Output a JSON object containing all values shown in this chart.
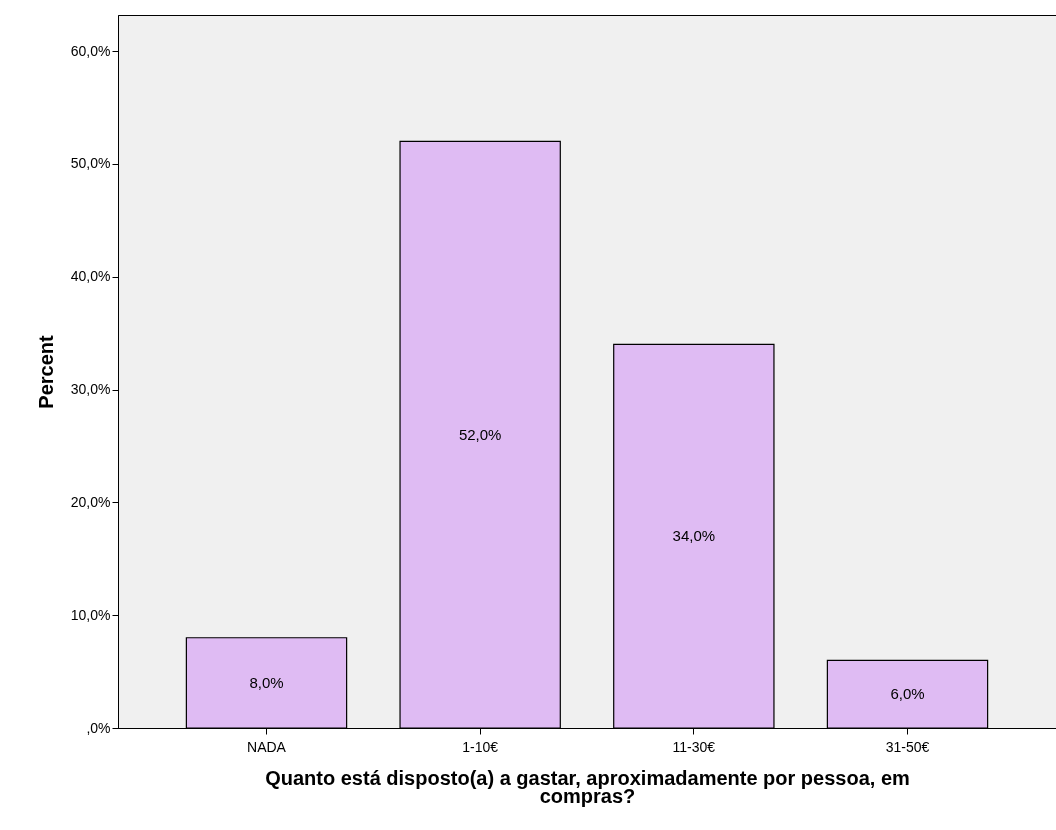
{
  "chart_data": {
    "type": "bar",
    "categories": [
      "NADA",
      "1-10€",
      "11-30€",
      "31-50€"
    ],
    "values": [
      8.0,
      52.0,
      34.0,
      6.0
    ],
    "value_labels": [
      "8,0%",
      "52,0%",
      "34,0%",
      "6,0%"
    ],
    "color": "#dfbbf3",
    "xlabel": "Quanto está disposto(a) a gastar, aproximadamente por pessoa, em compras?",
    "ylabel": "Percent",
    "ylim": [
      0,
      63.2
    ],
    "yticks": [
      {
        "value": 0,
        "label": ",0%"
      },
      {
        "value": 10,
        "label": "10,0%"
      },
      {
        "value": 20,
        "label": "20,0%"
      },
      {
        "value": 30,
        "label": "30,0%"
      },
      {
        "value": 40,
        "label": "40,0%"
      },
      {
        "value": 50,
        "label": "50,0%"
      },
      {
        "value": 60,
        "label": "60,0%"
      }
    ],
    "grid": false
  }
}
